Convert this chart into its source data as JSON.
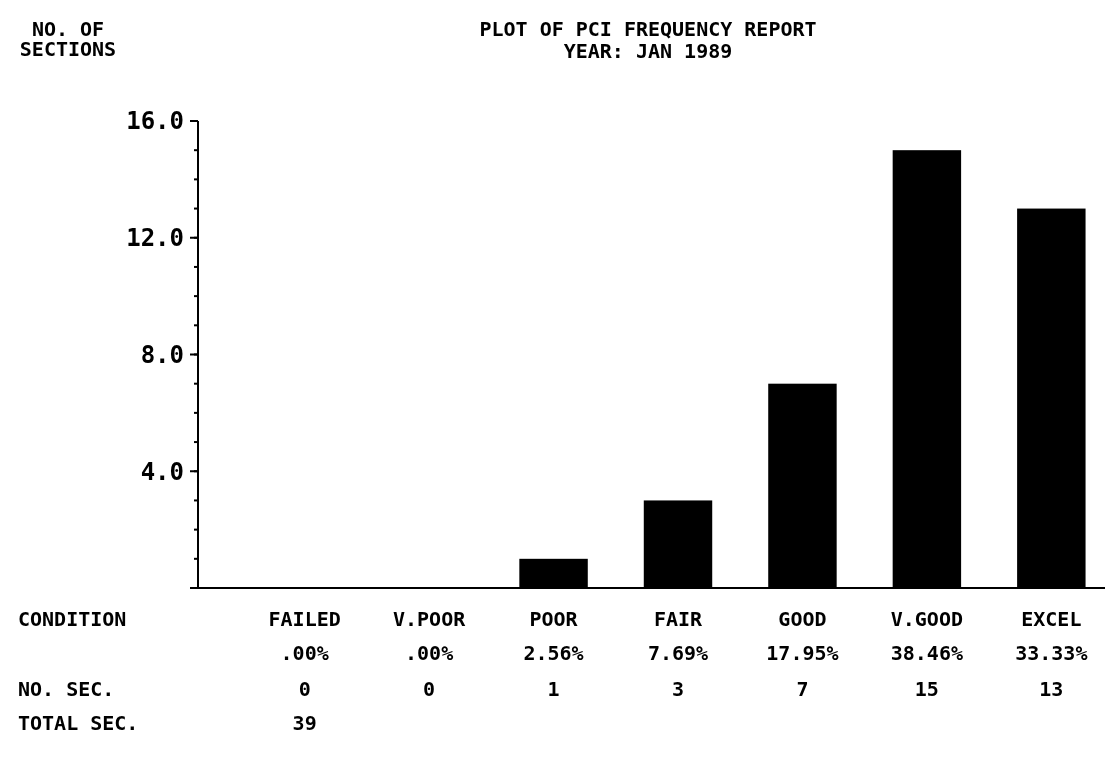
{
  "chart_data": {
    "type": "bar",
    "title": "PLOT OF PCI FREQUENCY REPORT",
    "subtitle": "YEAR: JAN 1989",
    "ylabel": "NO. OF SECTIONS",
    "categories": [
      "FAILED",
      "V.POOR",
      "POOR",
      "FAIR",
      "GOOD",
      "V.GOOD",
      "EXCEL"
    ],
    "values": [
      0,
      0,
      1,
      3,
      7,
      15,
      13
    ],
    "color": "#000000",
    "data_labels": true,
    "ylim": [
      0,
      16
    ],
    "yticks": [
      {
        "value": 0,
        "label": null
      },
      {
        "value": 4,
        "label": "4.0"
      },
      {
        "value": 8,
        "label": "8.0"
      },
      {
        "value": 12,
        "label": "12.0"
      },
      {
        "value": 16,
        "label": "16.0"
      }
    ],
    "grid": false,
    "annotations": [
      ".00%",
      ".00%",
      "2.56%",
      "7.69%",
      "17.95%",
      "38.46%",
      "33.33%",
      "CONDITION",
      "NO. SEC.",
      "TOTAL SEC.",
      "39"
    ]
  }
}
